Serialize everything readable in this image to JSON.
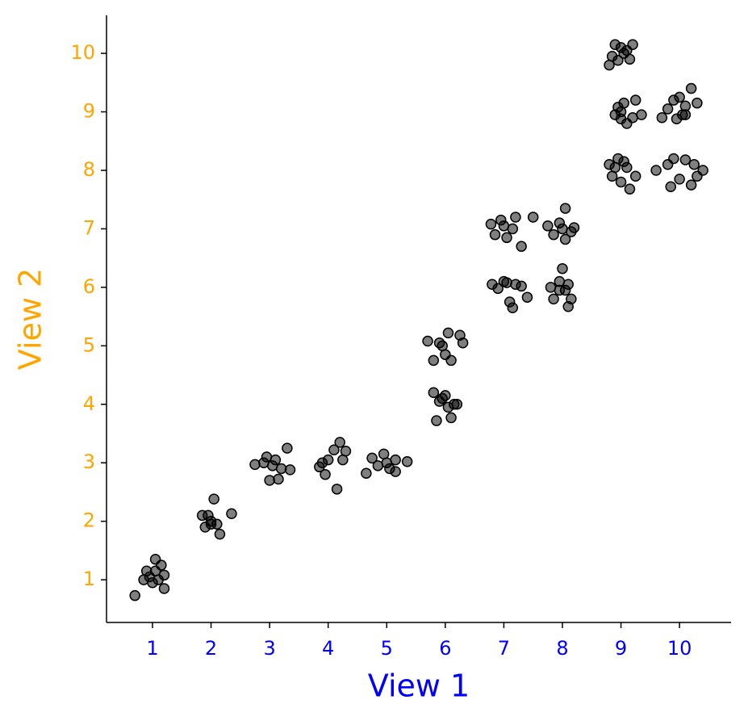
{
  "chart_data": {
    "type": "scatter",
    "xlabel": "View 1",
    "ylabel": "View 2",
    "xlabel_color": "#0000ff",
    "ylabel_color": "#ffa500",
    "color": "#000000",
    "opacity": 0.5,
    "xlim": [
      0.215,
      10.88
    ],
    "ylim": [
      0.27,
      10.65
    ],
    "xticks": [
      1,
      2,
      3,
      4,
      5,
      6,
      7,
      8,
      9,
      10
    ],
    "yticks": [
      1,
      2,
      3,
      4,
      5,
      6,
      7,
      8,
      9,
      10
    ],
    "x": [
      0.7,
      0.85,
      0.9,
      1.0,
      1.05,
      1.1,
      1.15,
      1.2,
      1.2,
      0.95,
      1.05,
      1.85,
      1.9,
      2.0,
      2.05,
      2.1,
      2.15,
      2.35,
      1.95,
      2.0,
      2.75,
      2.95,
      3.0,
      3.05,
      3.1,
      3.15,
      3.2,
      3.3,
      3.35,
      2.9,
      3.85,
      3.95,
      4.0,
      4.1,
      4.15,
      4.2,
      4.3,
      4.25,
      3.9,
      4.65,
      4.75,
      4.85,
      4.95,
      5.05,
      5.15,
      5.15,
      5.35,
      5.0,
      5.8,
      5.85,
      5.9,
      6.0,
      6.05,
      6.1,
      6.15,
      6.2,
      5.95,
      5.7,
      5.8,
      5.9,
      6.0,
      6.05,
      6.1,
      6.25,
      6.3,
      5.95,
      6.8,
      6.9,
      7.0,
      7.1,
      7.15,
      7.2,
      7.3,
      7.4,
      7.05,
      6.78,
      6.85,
      6.95,
      7.05,
      7.15,
      7.2,
      7.3,
      7.5,
      7.0,
      7.8,
      7.85,
      7.95,
      8.0,
      8.05,
      8.1,
      8.15,
      8.1,
      7.95,
      7.75,
      7.85,
      7.95,
      8.05,
      8.05,
      8.15,
      8.2,
      8.0,
      8.8,
      8.85,
      8.95,
      9.0,
      9.1,
      9.15,
      9.25,
      9.05,
      8.9,
      8.9,
      8.95,
      9.0,
      9.05,
      9.1,
      9.2,
      9.25,
      9.35,
      9.0,
      8.8,
      8.85,
      8.9,
      8.95,
      9.0,
      9.1,
      9.15,
      9.2,
      9.05,
      9.6,
      9.8,
      9.85,
      9.9,
      10.0,
      10.1,
      10.2,
      10.25,
      10.3,
      10.4,
      9.7,
      9.8,
      9.9,
      9.95,
      10.0,
      10.05,
      10.1,
      10.2,
      10.3,
      10.1
    ],
    "y": [
      0.73,
      1.0,
      1.15,
      0.95,
      1.35,
      1.0,
      1.25,
      0.85,
      1.08,
      1.05,
      1.15,
      2.1,
      1.9,
      2.0,
      2.38,
      1.95,
      1.78,
      2.13,
      2.1,
      1.95,
      2.97,
      3.1,
      2.7,
      2.95,
      3.05,
      2.72,
      2.9,
      3.25,
      2.88,
      3.0,
      2.93,
      2.8,
      3.05,
      3.22,
      2.55,
      3.35,
      3.2,
      3.05,
      3.0,
      2.82,
      3.08,
      2.95,
      3.15,
      2.9,
      3.05,
      2.85,
      3.02,
      3.0,
      4.2,
      3.72,
      4.05,
      4.15,
      3.95,
      3.77,
      4.0,
      4.0,
      4.1,
      5.08,
      4.75,
      5.05,
      4.85,
      5.22,
      4.75,
      5.18,
      5.05,
      5.0,
      6.05,
      5.98,
      6.1,
      5.75,
      5.65,
      6.05,
      6.02,
      5.83,
      6.08,
      7.08,
      6.9,
      7.15,
      6.85,
      7.0,
      7.2,
      6.7,
      7.2,
      7.05,
      6.0,
      5.8,
      6.1,
      6.32,
      5.95,
      5.67,
      5.8,
      6.05,
      5.95,
      7.05,
      6.9,
      7.1,
      6.82,
      7.35,
      6.95,
      7.02,
      7.0,
      8.1,
      7.9,
      8.2,
      7.8,
      8.05,
      7.68,
      7.9,
      8.15,
      8.05,
      8.95,
      9.08,
      8.88,
      9.15,
      8.8,
      8.9,
      9.2,
      8.95,
      9.0,
      9.8,
      9.95,
      10.15,
      9.88,
      10.1,
      10.05,
      9.9,
      10.15,
      10.0,
      8.0,
      8.1,
      7.72,
      8.2,
      7.85,
      8.18,
      7.75,
      8.1,
      7.9,
      8.0,
      8.9,
      9.05,
      9.2,
      8.88,
      9.25,
      8.95,
      9.1,
      9.4,
      9.15,
      8.95
    ]
  }
}
